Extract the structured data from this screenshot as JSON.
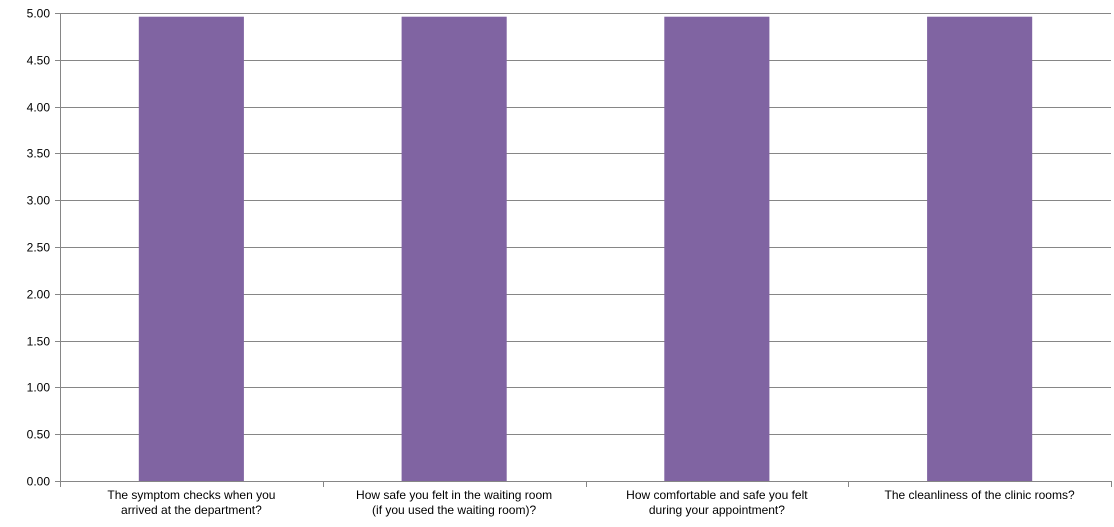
{
  "chart_data": {
    "type": "bar",
    "categories": [
      [
        "The symptom checks when you",
        "arrived at the department?"
      ],
      [
        "How safe you felt in the waiting room",
        "(if you used the waiting room)?"
      ],
      [
        "How comfortable and safe you felt",
        "during your appointment?"
      ],
      [
        "The cleanliness of the clinic rooms?"
      ]
    ],
    "values": [
      4.96,
      4.96,
      4.96,
      4.96
    ],
    "y_ticks": [
      "0.00",
      "0.50",
      "1.00",
      "1.50",
      "2.00",
      "2.50",
      "3.00",
      "3.50",
      "4.00",
      "4.50",
      "5.00"
    ],
    "ylim": [
      0,
      5
    ],
    "grid": true,
    "legend": "none",
    "title": "",
    "xlabel": "",
    "ylabel": "",
    "colors": {
      "bar": "#8064A2",
      "grid": "#868686",
      "axis": "#868686",
      "text": "#000000"
    }
  }
}
